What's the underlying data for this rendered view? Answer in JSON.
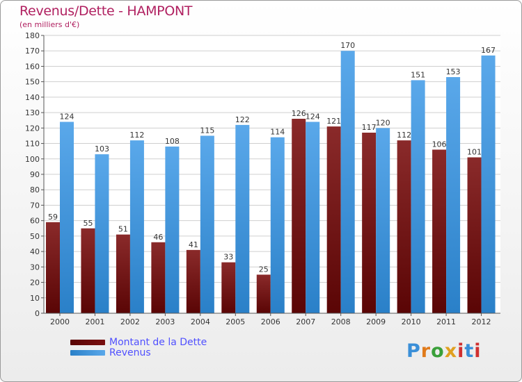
{
  "chart_data": {
    "type": "bar",
    "title": "Revenus/Dette - HAMPONT",
    "subtitle": "(en milliers d'€)",
    "xlabel": "",
    "ylabel": "",
    "ylim": [
      0,
      180
    ],
    "y_ticks": [
      0,
      10,
      20,
      30,
      40,
      50,
      60,
      70,
      80,
      90,
      100,
      110,
      120,
      130,
      140,
      150,
      160,
      170,
      180
    ],
    "grid": true,
    "categories": [
      "2000",
      "2001",
      "2002",
      "2003",
      "2004",
      "2005",
      "2006",
      "2007",
      "2008",
      "2009",
      "2010",
      "2011",
      "2012"
    ],
    "series": [
      {
        "name": "Montant de la Dette",
        "color": "#7a1010",
        "values": [
          59,
          55,
          51,
          46,
          41,
          33,
          25,
          126,
          121,
          117,
          112,
          106,
          101
        ]
      },
      {
        "name": "Revenus",
        "color": "#3f93d8",
        "values": [
          124,
          103,
          112,
          108,
          115,
          122,
          114,
          124,
          170,
          120,
          151,
          153,
          167
        ]
      }
    ],
    "legend_position": "bottom-left"
  },
  "logo": {
    "letters": [
      "P",
      "r",
      "o",
      "x",
      "i",
      "t",
      "i"
    ],
    "colors": [
      "#3a8fd8",
      "#e07a1a",
      "#3aa03a",
      "#e0a020",
      "#d03030",
      "#3a8fd8",
      "#d03030"
    ]
  }
}
